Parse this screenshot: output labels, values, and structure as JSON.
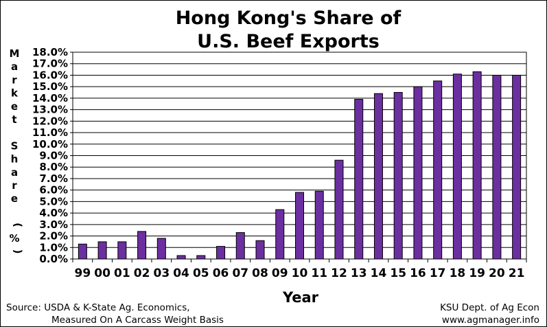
{
  "chart_data": {
    "type": "bar",
    "title": [
      "Hong Kong's Share of",
      "U.S. Beef Exports"
    ],
    "xlabel": "Year",
    "ylabel": "Market Share (%)",
    "categories": [
      "99",
      "00",
      "01",
      "02",
      "03",
      "04",
      "05",
      "06",
      "07",
      "08",
      "09",
      "10",
      "11",
      "12",
      "13",
      "14",
      "15",
      "16",
      "17",
      "18",
      "19",
      "20",
      "21"
    ],
    "values": [
      1.3,
      1.5,
      1.5,
      2.4,
      1.8,
      0.3,
      0.3,
      1.1,
      2.3,
      1.6,
      4.3,
      5.8,
      5.9,
      8.6,
      13.9,
      14.4,
      14.5,
      15.0,
      15.5,
      16.1,
      16.3,
      16.0,
      16.0
    ],
    "ylim": [
      0,
      18
    ],
    "yticks": [
      "0.0%",
      "1.0%",
      "2.0%",
      "3.0%",
      "4.0%",
      "5.0%",
      "6.0%",
      "7.0%",
      "8.0%",
      "9.0%",
      "10.0%",
      "11.0%",
      "12.0%",
      "13.0%",
      "14.0%",
      "15.0%",
      "16.0%",
      "17.0%",
      "18.0%"
    ],
    "grid": true,
    "bar_color": "#6b2fa0",
    "bar_stroke": "#000000"
  },
  "footer": {
    "source_line1": "Source:  USDA & K-State Ag. Economics,",
    "source_line2": "Measured On A Carcass Weight Basis",
    "credit_line1": "KSU Dept. of Ag Econ",
    "credit_line2": "www.agmanager.info"
  }
}
